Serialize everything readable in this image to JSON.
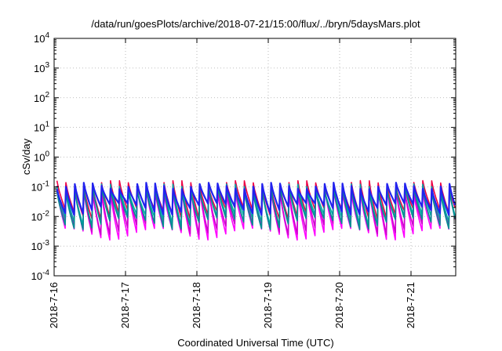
{
  "chart_data": {
    "type": "line",
    "title": "/data/run/goesPlots/archive/2018-07-21/15:00/flux/../bryn/5daysMars.plot",
    "xlabel": "Coordinated Universal Time (UTC)",
    "ylabel": "cSv/day",
    "yscale": "log",
    "ylim": [
      0.0001,
      10000
    ],
    "xlim": [
      "2018-07-16 00:00",
      "2018-07-21 15:00"
    ],
    "grid": true,
    "legend": "none",
    "y_ticks": [
      {
        "base": "10",
        "exp": "-4",
        "value": 0.0001
      },
      {
        "base": "10",
        "exp": "-3",
        "value": 0.001
      },
      {
        "base": "10",
        "exp": "-2",
        "value": 0.01
      },
      {
        "base": "10",
        "exp": "-1",
        "value": 0.1
      },
      {
        "base": "10",
        "exp": "0",
        "value": 1
      },
      {
        "base": "10",
        "exp": "1",
        "value": 10
      },
      {
        "base": "10",
        "exp": "2",
        "value": 100
      },
      {
        "base": "10",
        "exp": "3",
        "value": 1000
      },
      {
        "base": "10",
        "exp": "4",
        "value": 10000
      }
    ],
    "x_ticks": [
      {
        "label": "2018-7-16",
        "day": 0
      },
      {
        "label": "2018-7-17",
        "day": 1
      },
      {
        "label": "2018-7-18",
        "day": 2
      },
      {
        "label": "2018-7-19",
        "day": 3
      },
      {
        "label": "2018-7-20",
        "day": 4
      },
      {
        "label": "2018-7-21",
        "day": 5
      }
    ],
    "pattern": {
      "cycle_hours": 3,
      "start_day": 0.04
    },
    "series": [
      {
        "color": "#ff00ff",
        "peak": 0.08,
        "trough": 0.004
      },
      {
        "color": "#cc00cc",
        "peak": 0.09,
        "trough": 0.006
      },
      {
        "color": "#ee0044",
        "peak": 0.13,
        "trough": 0.02
      },
      {
        "color": "#00aaaa",
        "peak": 0.1,
        "trough": 0.012
      },
      {
        "color": "#009090",
        "peak": 0.085,
        "trough": 0.009
      },
      {
        "color": "#2222ee",
        "peak": 0.11,
        "trough": 0.028
      }
    ]
  }
}
